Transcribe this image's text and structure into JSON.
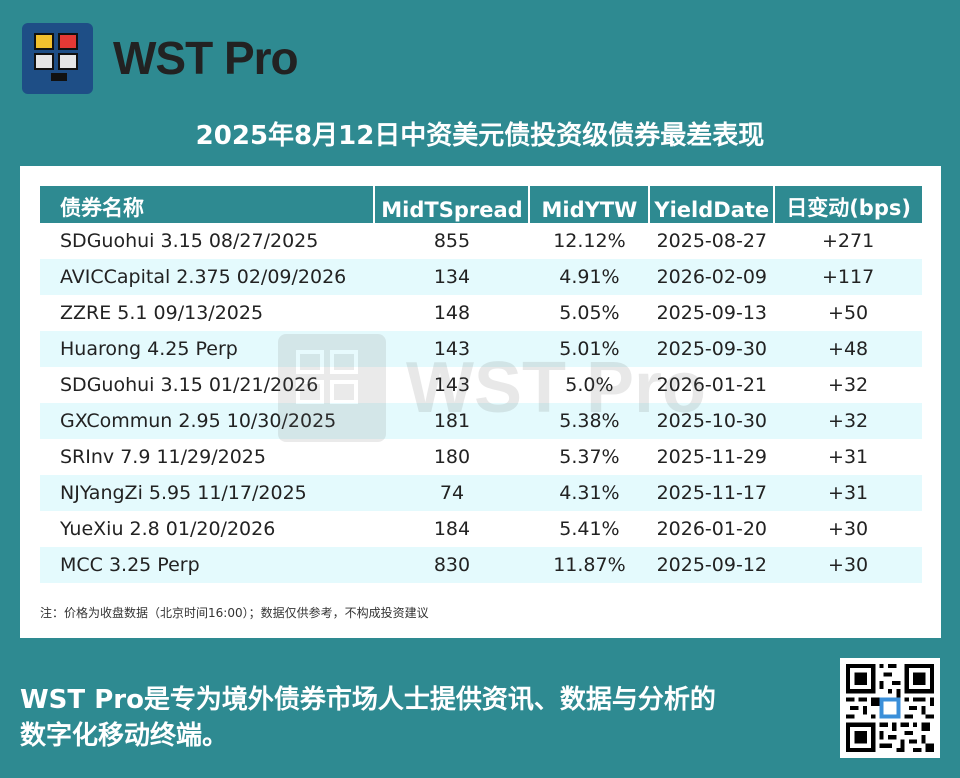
{
  "brand": {
    "name": "WST Pro",
    "logo_icon": "wst-pro-logo-icon"
  },
  "title": "2025年8月12日中资美元债投资级债券最差表现",
  "table": {
    "headers": [
      "债券名称",
      "MidTSpread",
      "MidYTW",
      "YieldDate",
      "日变动(bps)"
    ],
    "rows": [
      [
        "SDGuohui 3.15 08/27/2025",
        "855",
        "12.12%",
        "2025-08-27",
        "+271"
      ],
      [
        "AVICCapital 2.375 02/09/2026",
        "134",
        "4.91%",
        "2026-02-09",
        "+117"
      ],
      [
        "ZZRE 5.1 09/13/2025",
        "148",
        "5.05%",
        "2025-09-13",
        "+50"
      ],
      [
        "Huarong 4.25 Perp",
        "143",
        "5.01%",
        "2025-09-30",
        "+48"
      ],
      [
        "SDGuohui 3.15 01/21/2026",
        "143",
        "5.0%",
        "2026-01-21",
        "+32"
      ],
      [
        "GXCommun 2.95 10/30/2025",
        "181",
        "5.38%",
        "2025-10-30",
        "+32"
      ],
      [
        "SRInv 7.9 11/29/2025",
        "180",
        "5.37%",
        "2025-11-29",
        "+31"
      ],
      [
        "NJYangZi 5.95 11/17/2025",
        "74",
        "4.31%",
        "2025-11-17",
        "+31"
      ],
      [
        "YueXiu 2.8 01/20/2026",
        "184",
        "5.41%",
        "2026-01-20",
        "+30"
      ],
      [
        "MCC 3.25 Perp",
        "830",
        "11.87%",
        "2025-09-12",
        "+30"
      ]
    ]
  },
  "note": "注：价格为收盘数据（北京时间16:00）；数据仅供参考，不构成投资建议",
  "footer": {
    "line1": "WST Pro是专为境外债券市场人士提供资讯、数据与分析的",
    "line2": "数字化移动终端。"
  },
  "watermark": "WST Pro",
  "colors": {
    "background": "#2e8a91",
    "header_fill": "#2e8a91",
    "stripe": "#e4fafd",
    "logo_bg": "#1e4e86"
  }
}
